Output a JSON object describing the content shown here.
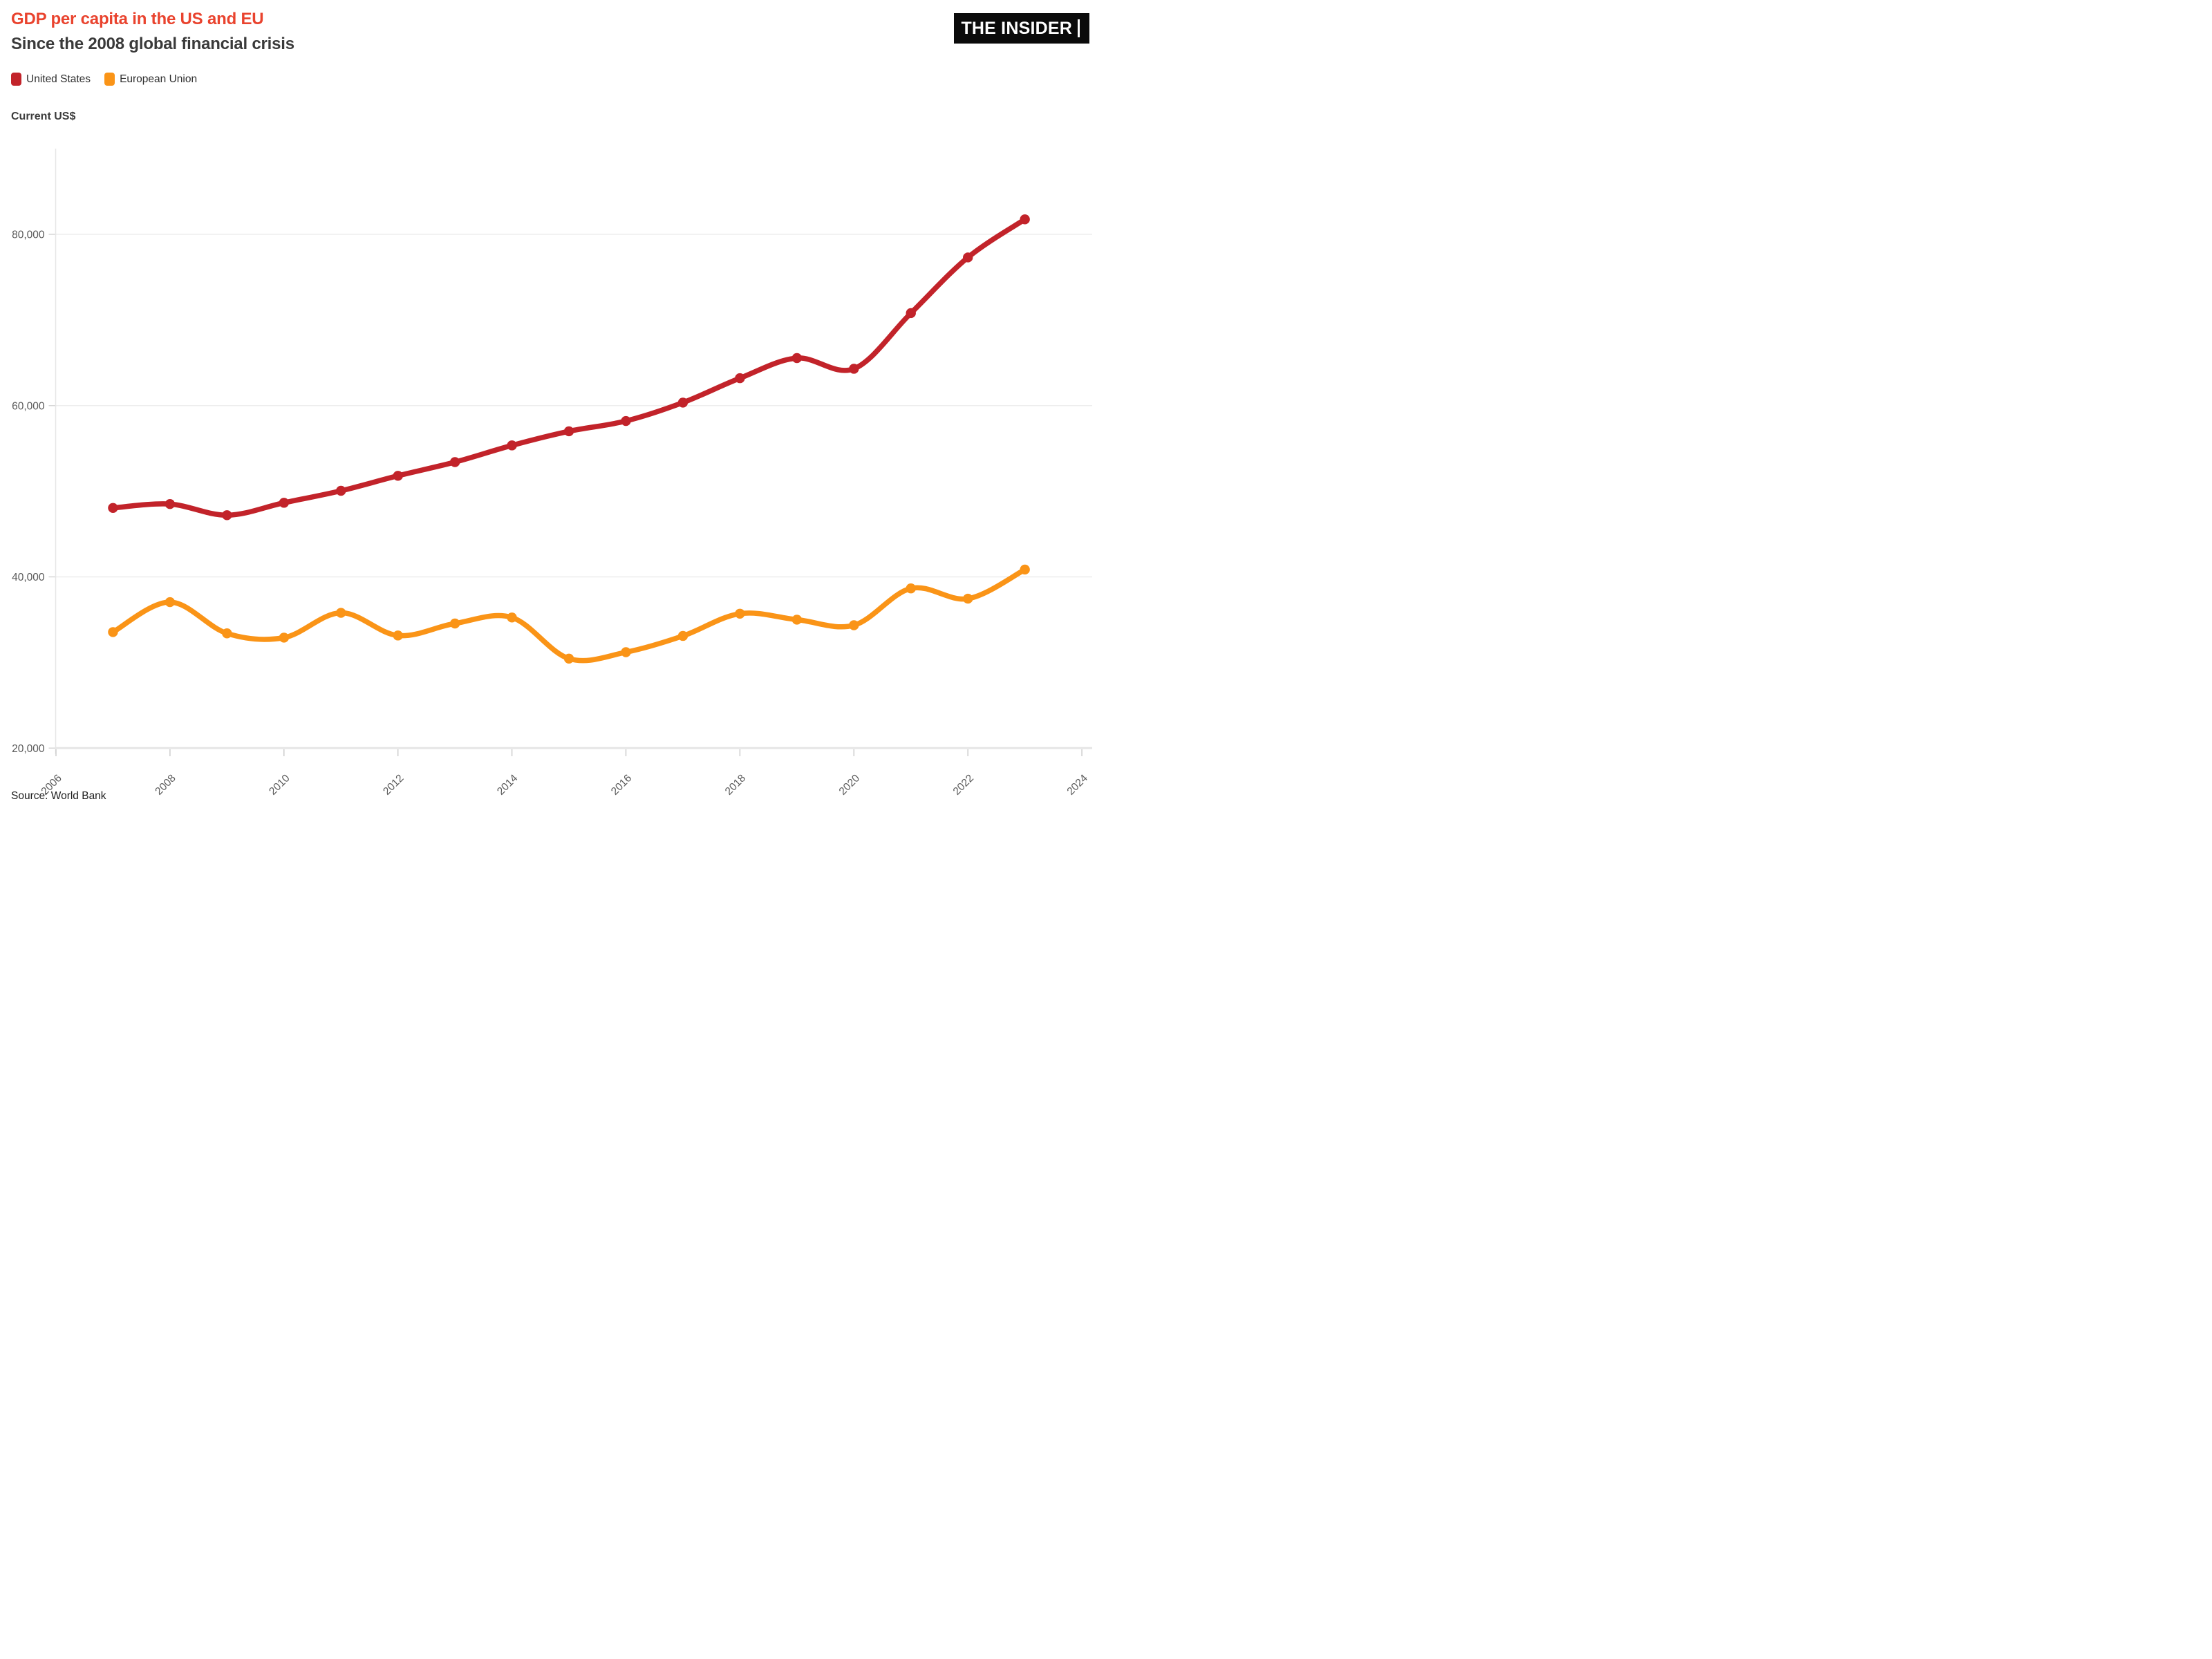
{
  "header": {
    "title": "GDP per capita in the US and EU",
    "subtitle": "Since the 2008 global financial crisis",
    "logo_text": "THE INSIDER"
  },
  "legend": {
    "items": [
      {
        "label": "United States",
        "color": "#c2232a"
      },
      {
        "label": "European Union",
        "color": "#fa9417"
      }
    ]
  },
  "y_axis_title": "Current US$",
  "source": "Source: World Bank",
  "chart_data": {
    "type": "line",
    "title": "GDP per capita in the US and EU",
    "subtitle": "Since the 2008 global financial crisis",
    "ylabel": "Current US$",
    "xlabel": "",
    "x": [
      2007,
      2008,
      2009,
      2010,
      2011,
      2012,
      2013,
      2014,
      2015,
      2016,
      2017,
      2018,
      2019,
      2020,
      2021,
      2022,
      2023
    ],
    "series": [
      {
        "name": "United States",
        "color": "#c2232a",
        "values": [
          48050,
          48500,
          47200,
          48650,
          50050,
          51800,
          53400,
          55350,
          57000,
          58200,
          60350,
          63200,
          65550,
          64300,
          70800,
          77300,
          81750
        ]
      },
      {
        "name": "European Union",
        "color": "#fa9417",
        "values": [
          33550,
          37050,
          33400,
          32900,
          35800,
          33150,
          34550,
          35250,
          30450,
          31200,
          33100,
          35700,
          35000,
          34350,
          38650,
          37450,
          40850
        ]
      }
    ],
    "xlim": [
      2006,
      2024
    ],
    "ylim": [
      20000,
      90000
    ],
    "grid": "horizontal",
    "legend_position": "top-left",
    "point_markers": true,
    "line_smoothing": true,
    "y_ticks": [
      {
        "value": 20000,
        "label": "20,000"
      },
      {
        "value": 40000,
        "label": "40,000"
      },
      {
        "value": 60000,
        "label": "60,000"
      },
      {
        "value": 80000,
        "label": "80,000"
      }
    ],
    "x_ticks": [
      {
        "value": 2006,
        "label": "2006"
      },
      {
        "value": 2008,
        "label": "2008"
      },
      {
        "value": 2010,
        "label": "2010"
      },
      {
        "value": 2012,
        "label": "2012"
      },
      {
        "value": 2014,
        "label": "2014"
      },
      {
        "value": 2016,
        "label": "2016"
      },
      {
        "value": 2018,
        "label": "2018"
      },
      {
        "value": 2020,
        "label": "2020"
      },
      {
        "value": 2022,
        "label": "2022"
      },
      {
        "value": 2024,
        "label": "2024"
      }
    ]
  }
}
